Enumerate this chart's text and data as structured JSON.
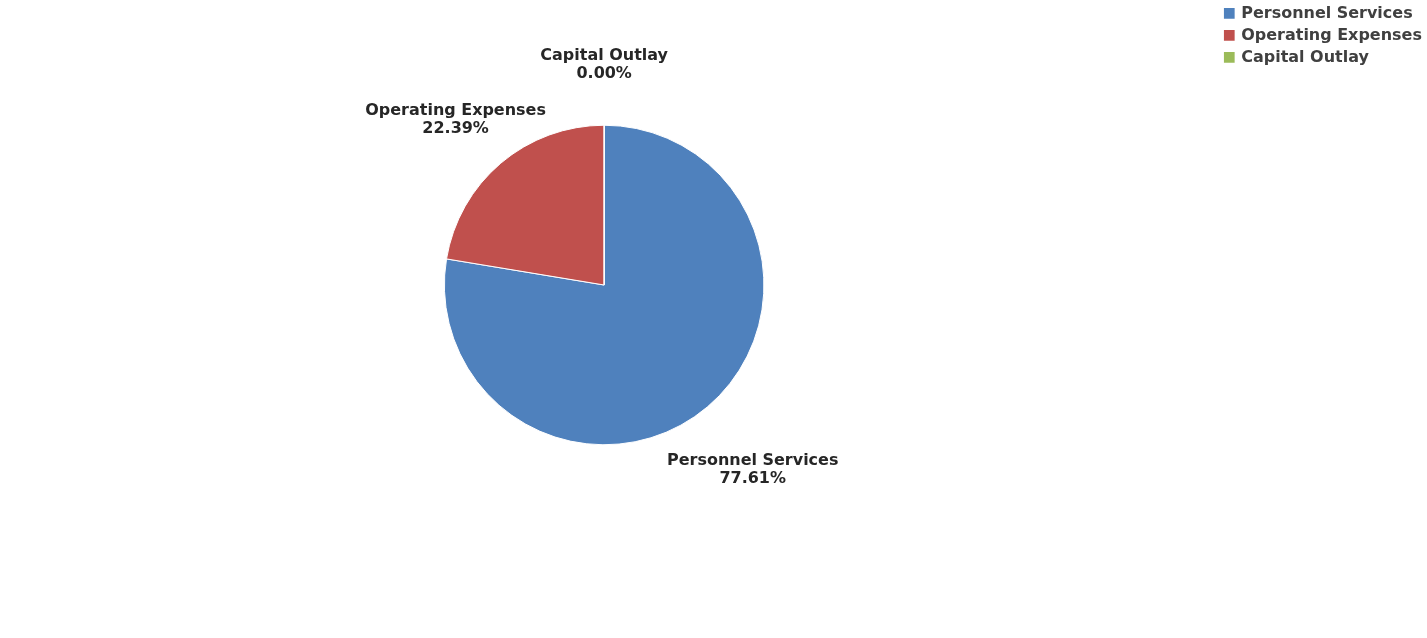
{
  "chart_data": {
    "type": "pie",
    "categories": [
      "Personnel  Services",
      "Operating Expenses",
      "Capital Outlay"
    ],
    "values": [
      77.61,
      22.39,
      0.0
    ],
    "colors": [
      "#4f81bd",
      "#c0504d",
      "#9bbb59"
    ],
    "value_labels": [
      "77.61%",
      "22.39%",
      "0.00%"
    ],
    "legend": "right"
  }
}
